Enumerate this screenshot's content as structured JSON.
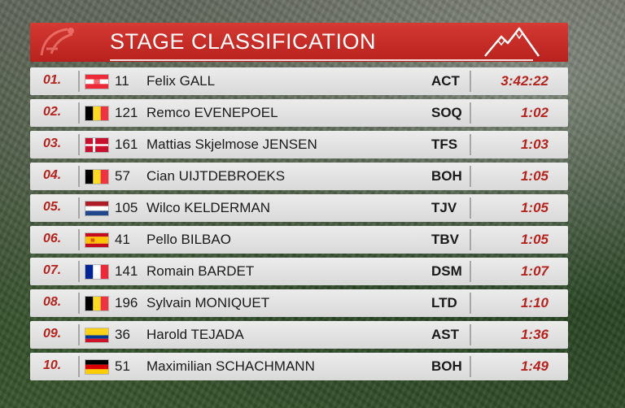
{
  "header": {
    "title": "STAGE CLASSIFICATION",
    "logo_icon": "race-logo-icon",
    "mountain_icon": "mountain-icon",
    "accent": "#c02a25"
  },
  "rows": [
    {
      "rank": "01.",
      "flag": "austria-flag-icon",
      "bib": "11",
      "name": "Felix GALL",
      "team": "ACT",
      "time": "3:42:22"
    },
    {
      "rank": "02.",
      "flag": "belgium-flag-icon",
      "bib": "121",
      "name": "Remco EVENEPOEL",
      "team": "SOQ",
      "time": "1:02"
    },
    {
      "rank": "03.",
      "flag": "denmark-flag-icon",
      "bib": "161",
      "name": "Mattias Skjelmose JENSEN",
      "team": "TFS",
      "time": "1:03"
    },
    {
      "rank": "04.",
      "flag": "belgium-flag-icon",
      "bib": "57",
      "name": "Cian UIJTDEBROEKS",
      "team": "BOH",
      "time": "1:05"
    },
    {
      "rank": "05.",
      "flag": "netherlands-flag-icon",
      "bib": "105",
      "name": "Wilco KELDERMAN",
      "team": "TJV",
      "time": "1:05"
    },
    {
      "rank": "06.",
      "flag": "spain-flag-icon",
      "bib": "41",
      "name": "Pello BILBAO",
      "team": "TBV",
      "time": "1:05"
    },
    {
      "rank": "07.",
      "flag": "france-flag-icon",
      "bib": "141",
      "name": "Romain BARDET",
      "team": "DSM",
      "time": "1:07"
    },
    {
      "rank": "08.",
      "flag": "belgium-flag-icon",
      "bib": "196",
      "name": "Sylvain MONIQUET",
      "team": "LTD",
      "time": "1:10"
    },
    {
      "rank": "09.",
      "flag": "colombia-flag-icon",
      "bib": "36",
      "name": "Harold TEJADA",
      "team": "AST",
      "time": "1:36"
    },
    {
      "rank": "10.",
      "flag": "germany-flag-icon",
      "bib": "51",
      "name": "Maximilian SCHACHMANN",
      "team": "BOH",
      "time": "1:49"
    }
  ]
}
